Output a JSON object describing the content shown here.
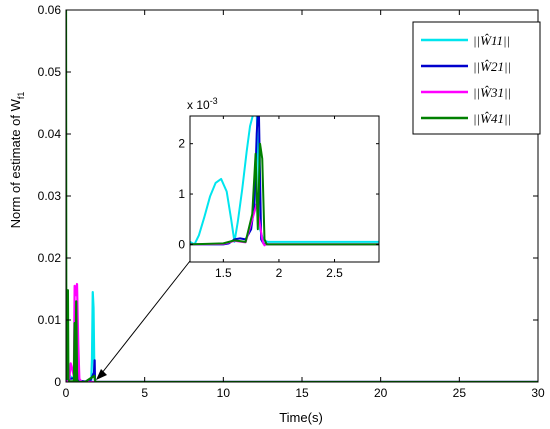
{
  "chart_data": [
    {
      "type": "line",
      "xlabel": "Time(s)",
      "ylabel": "Norm of estimate of W",
      "ylabel_sub": "f1",
      "xlim": [
        0,
        30
      ],
      "ylim": [
        0,
        0.06
      ],
      "xticks": [
        0,
        5,
        10,
        15,
        20,
        25,
        30
      ],
      "yticks": [
        0,
        0.01,
        0.02,
        0.03,
        0.04,
        0.05,
        0.06
      ],
      "xtick_labels": [
        "0",
        "5",
        "10",
        "15",
        "20",
        "25",
        "30"
      ],
      "ytick_labels": [
        "0",
        "0.01",
        "0.02",
        "0.03",
        "0.04",
        "0.05",
        "0.06"
      ],
      "legend_position": "top-right",
      "series": [
        {
          "name": "||Ŵ11||",
          "color": "#00e5ee",
          "x": [
            0,
            0.05,
            0.3,
            0.8,
            1.3,
            1.6,
            1.65,
            1.7,
            1.75,
            1.8,
            1.85,
            1.9,
            2.0,
            30
          ],
          "y": [
            0,
            0.002,
            0.0008,
            0.0002,
            0,
            0,
            0.0035,
            0.0145,
            0.012,
            0.002,
            0.0002,
            0,
            0,
            0
          ]
        },
        {
          "name": "||Ŵ21||",
          "color": "#0000cd",
          "x": [
            0,
            0.05,
            0.1,
            0.2,
            0.5,
            0.7,
            0.8,
            1.5,
            1.78,
            1.82,
            1.84,
            1.9,
            30
          ],
          "y": [
            0,
            0.0005,
            0.002,
            0.0005,
            0.0006,
            0.005,
            0.0002,
            0,
            0.0015,
            0.0035,
            0.0002,
            0,
            0
          ]
        },
        {
          "name": "||Ŵ31||",
          "color": "#ff00ff",
          "x": [
            0,
            0.2,
            0.3,
            0.5,
            0.55,
            0.62,
            0.7,
            0.78,
            0.85,
            1.0,
            30
          ],
          "y": [
            0,
            0.0003,
            0.003,
            0.001,
            0.0155,
            0.014,
            0.0158,
            0.006,
            0.0005,
            0,
            0
          ]
        },
        {
          "name": "||Ŵ41||",
          "color": "#008000",
          "x": [
            0,
            0.02,
            0.05,
            0.08,
            0.12,
            0.15,
            0.2,
            0.3,
            0.5,
            0.55,
            0.6,
            0.65,
            0.7,
            0.8,
            1.2,
            1.8,
            1.85,
            1.9,
            30
          ],
          "y": [
            0.06,
            0.0005,
            0.0148,
            0.002,
            0.0148,
            0.0005,
            0.0001,
            0.0001,
            0.0001,
            0.0095,
            0.0002,
            0.013,
            0.0002,
            0,
            0,
            0.001,
            0.0002,
            0,
            0
          ]
        }
      ]
    },
    {
      "type": "line",
      "exponent_label": "x 10",
      "exponent_power": "-3",
      "xlim": [
        1.2,
        2.9
      ],
      "ylim": [
        -0.35,
        2.55
      ],
      "xticks": [
        1.5,
        2,
        2.5
      ],
      "yticks": [
        0,
        1,
        2
      ],
      "xtick_labels": [
        "1.5",
        "2",
        "2.5"
      ],
      "ytick_labels": [
        "0",
        "1",
        "2"
      ],
      "series": [
        {
          "name": "||Ŵ11||",
          "color": "#00e5ee",
          "x": [
            1.2,
            1.24,
            1.28,
            1.33,
            1.38,
            1.43,
            1.48,
            1.53,
            1.57,
            1.6,
            1.63,
            1.67,
            1.71,
            1.74,
            1.77,
            1.8,
            1.83,
            1.86,
            1.9,
            2.9
          ],
          "y": [
            0.05,
            0.0,
            0.18,
            0.55,
            0.95,
            1.22,
            1.3,
            1.05,
            0.5,
            0.05,
            0.45,
            1.1,
            1.85,
            2.35,
            2.6,
            2.6,
            0.3,
            0.08,
            0.05,
            0.05
          ]
        },
        {
          "name": "||Ŵ21||",
          "color": "#0000cd",
          "x": [
            1.2,
            1.5,
            1.55,
            1.6,
            1.65,
            1.7,
            1.75,
            1.78,
            1.8,
            1.81,
            1.82,
            1.84,
            1.86,
            1.9,
            2.9
          ],
          "y": [
            0,
            0,
            0.02,
            0.1,
            0.12,
            0.1,
            0.3,
            0.8,
            2.2,
            2.6,
            2.6,
            0.1,
            0.02,
            0,
            0
          ]
        },
        {
          "name": "||Ŵ31||",
          "color": "#ff00ff",
          "x": [
            1.2,
            1.5,
            1.6,
            1.7,
            1.8,
            1.85,
            1.86,
            1.87,
            1.88,
            2.9
          ],
          "y": [
            0,
            0.01,
            0.07,
            0.04,
            0.8,
            0.1,
            0.02,
            -0.02,
            0.0,
            0.0
          ]
        },
        {
          "name": "||Ŵ41||",
          "color": "#008000",
          "x": [
            1.2,
            1.5,
            1.6,
            1.7,
            1.76,
            1.79,
            1.81,
            1.83,
            1.85,
            1.87,
            1.89,
            2.9
          ],
          "y": [
            0,
            0.02,
            0.08,
            0.05,
            0.6,
            1.8,
            0.3,
            2.0,
            1.7,
            0.1,
            0,
            0
          ]
        }
      ]
    }
  ]
}
